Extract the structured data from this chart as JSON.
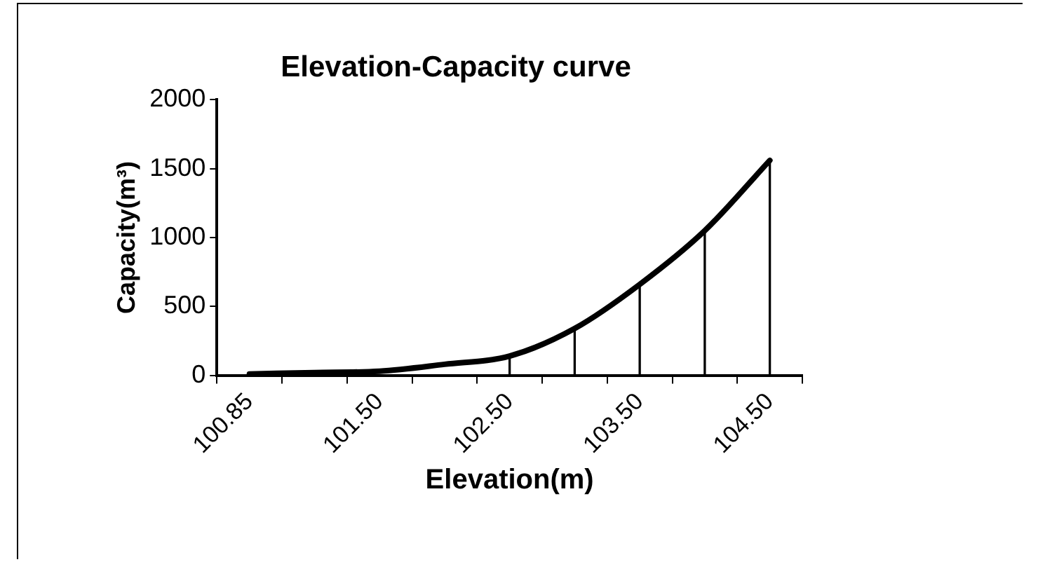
{
  "chart_data": {
    "type": "line",
    "title": "Elevation-Capacity curve",
    "xlabel": "Elevation(m)",
    "ylabel": "Capacity(m³)",
    "categories": [
      "100.85",
      null,
      "101.50",
      null,
      "102.50",
      null,
      "103.50",
      null,
      "104.50"
    ],
    "series": [
      {
        "color": "#000000",
        "values": [
          10,
          20,
          30,
          80,
          140,
          340,
          660,
          1050,
          1560
        ]
      },
      {
        "type": "bar",
        "color": "#000000",
        "values": [
          null,
          null,
          null,
          null,
          140,
          340,
          660,
          1050,
          1560
        ]
      }
    ],
    "ylim": [
      0,
      2000
    ],
    "yticks": [
      0,
      500,
      1000,
      1500,
      2000
    ],
    "grid": false,
    "legend": false,
    "marker": "none"
  }
}
